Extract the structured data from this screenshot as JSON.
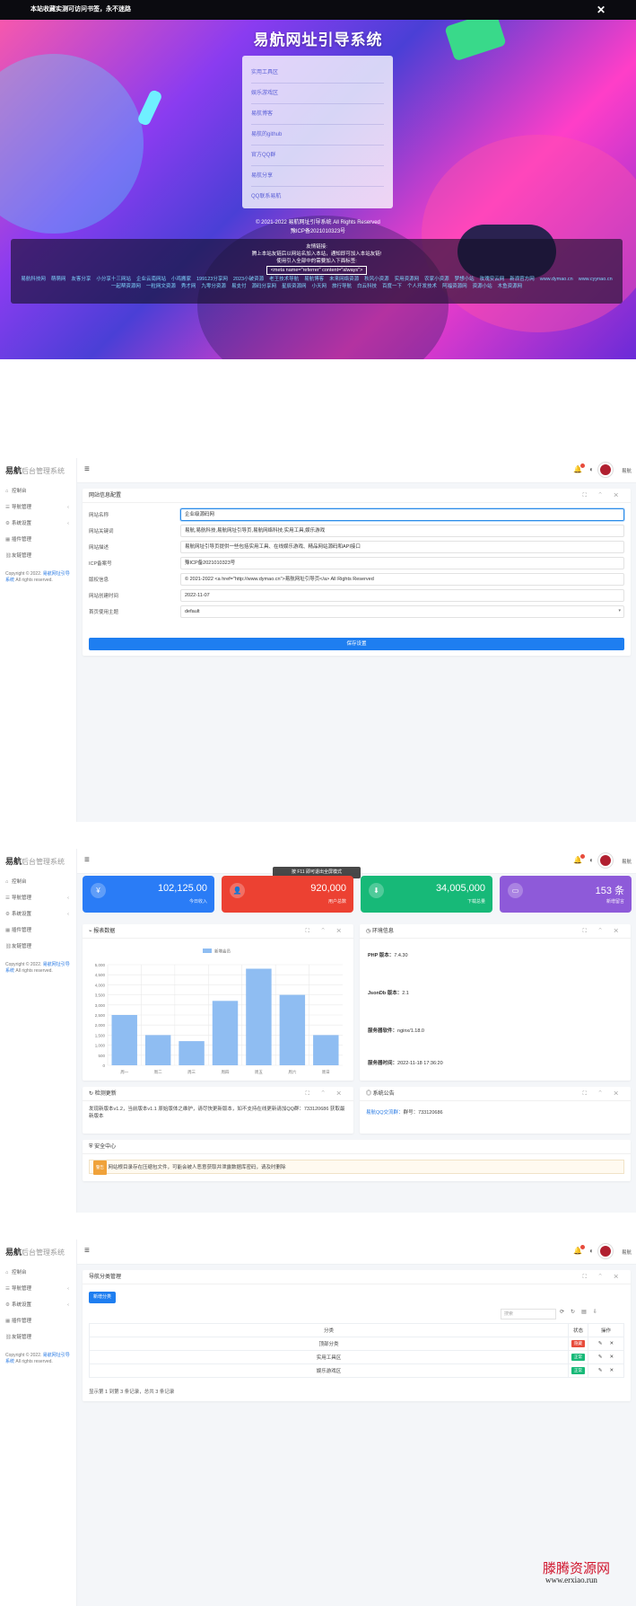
{
  "hero": {
    "notice": "本站收藏实测可访问书签，永不迷路",
    "title": "易航网址引导系统",
    "links": [
      "实用工具区",
      "娱乐游戏区",
      "易航博客",
      "易航的github",
      "官方QQ群",
      "易航分享",
      "QQ联系易航"
    ],
    "copyright": "© 2021-2022 易航网址引导系统 All Rights Reserved",
    "icp": "豫ICP备2021010323号",
    "friends_title": "友情链接:",
    "friends_note1": "腾上本站友链后以网站名加入本站，通知即可加入本站友链!",
    "friends_note2": "使用引入全部中的需要加入下面标签:",
    "friends_meta": "<meta name=\"referrer\" content=\"always\">",
    "friend_links": [
      "易航科技网",
      "萌萌网",
      "友客分享",
      "小分享十三网站",
      "企业云南网站",
      "小鸡搬家",
      "199123分享网",
      "2023小破资源",
      "老王技术导航",
      "易航博客",
      "未来网络资源",
      "秋风小资源",
      "实用资源网",
      "农家小资源",
      "梦想小站",
      "玫瑰安云网",
      "新浪官方网",
      "www.dymao.cn",
      "www.cyynao.cn",
      "一起帮资源网",
      "一粒网文资源",
      "秀才网",
      "九零分资源",
      "易支付",
      "源码分享网",
      "星辰资源网",
      "小天网",
      "旅行导航",
      "白云科技",
      "百度一下",
      "个人开发技术",
      "阿福资源网",
      "资源小站",
      "木鱼资源网"
    ]
  },
  "frame1": {
    "logo_main": "易航",
    "logo_sub": "后台管理系统",
    "nav": [
      {
        "label": "控制台",
        "icon": "home-icon",
        "arrow": ""
      },
      {
        "label": "导航管理",
        "icon": "list-icon",
        "arrow": "‹"
      },
      {
        "label": "系统设置",
        "icon": "gear-icon",
        "arrow": "‹"
      },
      {
        "label": "插件管理",
        "icon": "grid-icon",
        "arrow": ""
      },
      {
        "label": "友链管理",
        "icon": "link-icon",
        "arrow": ""
      }
    ],
    "copyright1": "Copyright © 2022.",
    "copyright_link": "易航网址引导系统",
    "copyright2": "All rights reserved.",
    "username": "易航",
    "card_title": "网站信息配置",
    "fields": [
      {
        "label": "网站名称",
        "value": "企业级源码网"
      },
      {
        "label": "网站关键词",
        "value": "易航,易航科技,易航网址引导页,易航网络科技,实用工具,娱乐游戏"
      },
      {
        "label": "网站描述",
        "value": "易航网址引导页提供一些包括实用工具、在线娱乐游戏、精品网站源码和API接口"
      },
      {
        "label": "ICP备案号",
        "value": "豫ICP备2021010323号"
      },
      {
        "label": "版权信息",
        "value": "© 2021-2022 <a href=\"http://www.dymao.cn\">易航网址引导页</a> All Rights Reserved"
      },
      {
        "label": "网站创建时间",
        "value": "2022-11-07"
      },
      {
        "label": "首页使用主题",
        "value": "default"
      }
    ],
    "save_label": "保存设置"
  },
  "frame2": {
    "tooltip": "按 F11 即可退出全屏模式",
    "stats": [
      {
        "value": "102,125.00",
        "label": "今日收入",
        "color": "#2a7cf6",
        "icon": "yen-icon"
      },
      {
        "value": "920,000",
        "label": "用户总数",
        "color": "#ec4132",
        "icon": "user-icon"
      },
      {
        "value": "34,005,000",
        "label": "下载总量",
        "color": "#17b978",
        "icon": "download-icon"
      },
      {
        "value": "153 条",
        "label": "新增留言",
        "color": "#8e5ad9",
        "icon": "message-icon"
      }
    ],
    "chart_title": "报表数据",
    "env_title": "环境信息",
    "env": [
      {
        "k": "PHP 版本：",
        "v": "7.4.30"
      },
      {
        "k": "JsonDb 版本：",
        "v": "2.1"
      },
      {
        "k": "服务器软件：",
        "v": "nginx/1.18.0"
      },
      {
        "k": "服务器时间：",
        "v": "2022-11-18 17:36:20"
      }
    ],
    "update_title": "检测更新",
    "update_text": "发现新版本v1.2，当前版本v1.1 原始版体之维护，请尽快更新版本，如不支持在线更新请加QQ群：733120686 获取最新版本",
    "notice_title": "系统公告",
    "notice_link": "易航QQ交流群：",
    "notice_text": "群号：733120686",
    "security_title": "安全中心",
    "security_badge": "警告",
    "security_text": "网站根目录存在压缩包文件，可能会被人恶意获取并泄露数据库密码，请及时删除"
  },
  "chart_data": {
    "type": "bar",
    "title": "",
    "categories": [
      "周一",
      "周二",
      "周三",
      "周四",
      "周五",
      "周六",
      "周日"
    ],
    "series": [
      {
        "name": "新增会员",
        "values": [
          2500,
          1500,
          1200,
          3200,
          4800,
          3500,
          1500
        ]
      }
    ],
    "ylim": [
      0,
      5000
    ],
    "yticks": [
      "5,000",
      "4,500",
      "4,000",
      "3,500",
      "3,000",
      "2,500",
      "2,000",
      "1,500",
      "1,000",
      "500",
      "0"
    ],
    "color": "#8fbdf2",
    "grid": true,
    "legend": "top-center"
  },
  "frame3": {
    "card_title": "导航分类管理",
    "new_button": "新增分类",
    "search_placeholder": "搜索",
    "headers": [
      "分类",
      "状态",
      "操作"
    ],
    "rows": [
      {
        "name": "顶部分类",
        "status": "隐藏",
        "status_color": "#e74c3c"
      },
      {
        "name": "实用工具区",
        "status": "正常",
        "status_color": "#17b978"
      },
      {
        "name": "娱乐游戏区",
        "status": "正常",
        "status_color": "#17b978"
      }
    ],
    "footer": "显示第 1 到第 3 条记录，总共 3 条记录"
  },
  "watermark": {
    "text": "滕腾资源网",
    "url": "www.erxiao.run"
  }
}
